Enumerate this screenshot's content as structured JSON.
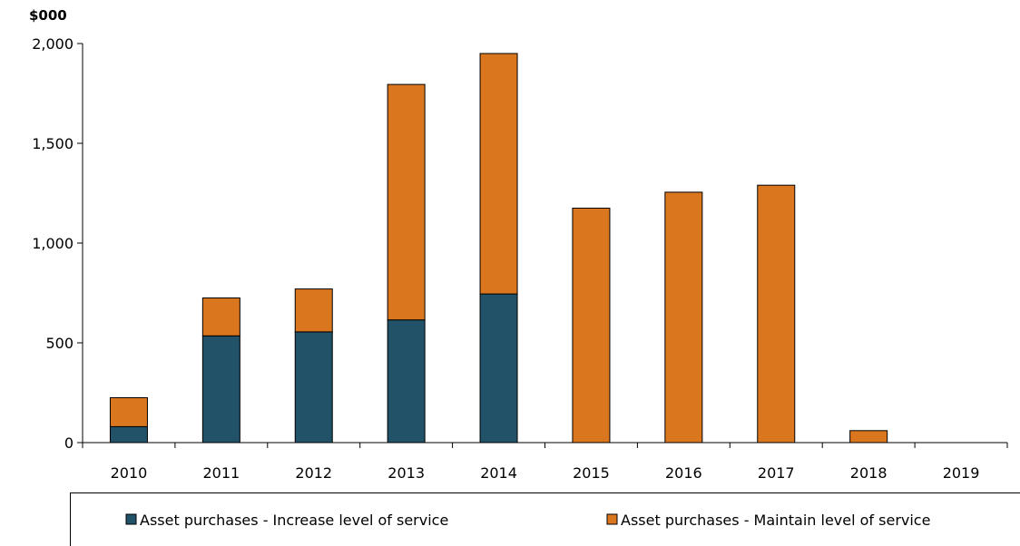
{
  "chart_data": {
    "type": "bar",
    "stacked": true,
    "unit_label": "$000",
    "categories": [
      "2010",
      "2011",
      "2012",
      "2013",
      "2014",
      "2015",
      "2016",
      "2017",
      "2018",
      "2019"
    ],
    "series": [
      {
        "name": "Asset purchases - Increase level of service",
        "color": "#215268",
        "values": [
          80,
          535,
          555,
          615,
          745,
          0,
          0,
          0,
          0,
          0
        ]
      },
      {
        "name": "Asset purchases - Maintain level of service",
        "color": "#D9761E",
        "values": [
          145,
          190,
          215,
          1180,
          1205,
          1175,
          1255,
          1290,
          60,
          0
        ]
      }
    ],
    "ylim": [
      0,
      2000
    ],
    "yticks": [
      0,
      500,
      1000,
      1500,
      2000
    ],
    "ytick_labels": [
      "0",
      "500",
      "1,000",
      "1,500",
      "2,000"
    ],
    "xlabel": "",
    "ylabel": "",
    "grid": false,
    "legend_position": "bottom"
  }
}
